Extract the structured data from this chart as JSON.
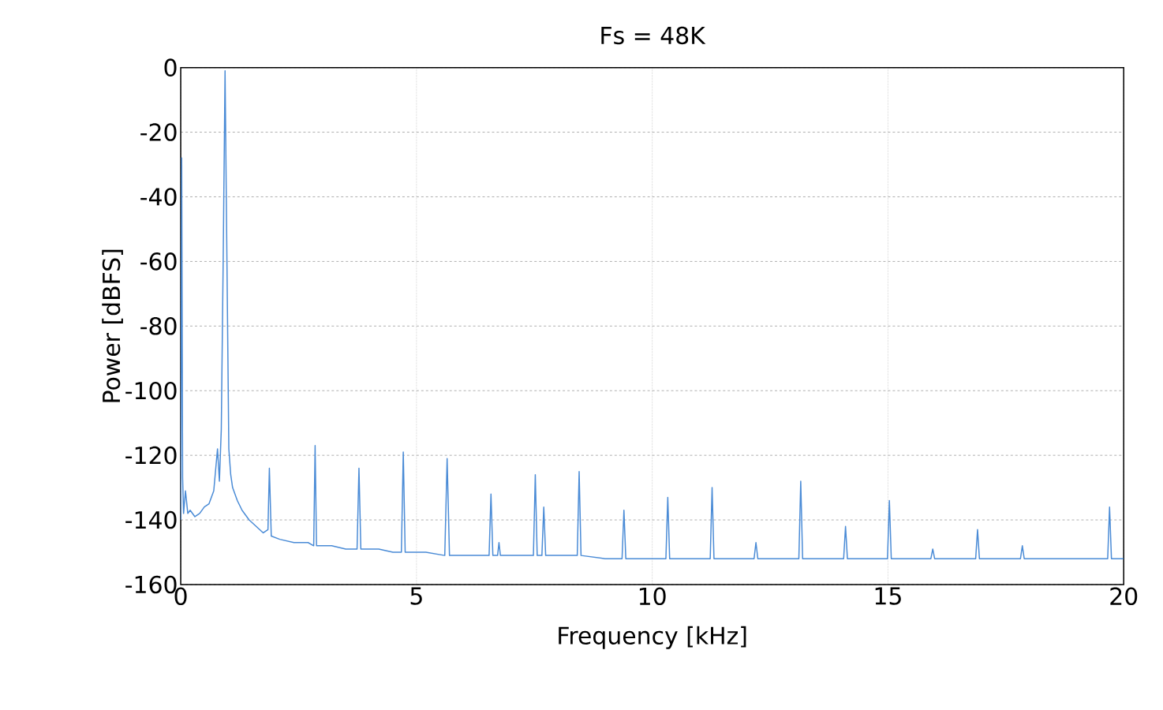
{
  "chart_data": {
    "type": "line",
    "title": "Fs = 48K",
    "xlabel": "Frequency [kHz]",
    "ylabel": "Power [dBFS]",
    "xlim": [
      0,
      20
    ],
    "ylim": [
      -160,
      0
    ],
    "xticks": [
      0,
      5,
      10,
      15,
      20
    ],
    "yticks": [
      0,
      -20,
      -40,
      -60,
      -80,
      -100,
      -120,
      -140,
      -160
    ],
    "grid": true,
    "series": [
      {
        "color": "#4a8bd6",
        "x": [
          0,
          0.02,
          0.04,
          0.06,
          0.1,
          0.15,
          0.2,
          0.3,
          0.4,
          0.5,
          0.6,
          0.7,
          0.78,
          0.82,
          0.86,
          0.9,
          0.94,
          0.98,
          1.02,
          1.06,
          1.1,
          1.2,
          1.3,
          1.45,
          1.6,
          1.75,
          1.85,
          1.88,
          1.92,
          2.1,
          2.4,
          2.7,
          2.82,
          2.85,
          2.88,
          3.2,
          3.5,
          3.74,
          3.78,
          3.82,
          4.2,
          4.5,
          4.68,
          4.72,
          4.76,
          5.2,
          5.6,
          5.65,
          5.7,
          6.2,
          6.54,
          6.58,
          6.62,
          6.72,
          6.75,
          6.78,
          7.2,
          7.48,
          7.52,
          7.56,
          7.66,
          7.7,
          7.74,
          8.1,
          8.41,
          8.45,
          8.49,
          9.0,
          9.36,
          9.4,
          9.44,
          9.9,
          10.29,
          10.33,
          10.37,
          10.8,
          11.23,
          11.27,
          11.31,
          11.8,
          12.16,
          12.2,
          12.24,
          12.7,
          13.11,
          13.15,
          13.19,
          13.6,
          14.06,
          14.1,
          14.14,
          14.6,
          14.99,
          15.03,
          15.07,
          15.5,
          15.91,
          15.95,
          15.99,
          16.4,
          16.86,
          16.9,
          16.94,
          17.4,
          17.81,
          17.85,
          17.89,
          18.5,
          19.2,
          19.66,
          19.7,
          19.74,
          20
        ],
        "values": [
          -140,
          -28,
          -127,
          -138,
          -131,
          -138,
          -137,
          -139,
          -138,
          -136,
          -135,
          -131,
          -118,
          -128,
          -112,
          -60,
          -1,
          -60,
          -118,
          -126,
          -130,
          -134,
          -137,
          -140,
          -142,
          -144,
          -143,
          -124,
          -145,
          -146,
          -147,
          -147,
          -148,
          -117,
          -148,
          -148,
          -149,
          -149,
          -124,
          -149,
          -149,
          -150,
          -150,
          -119,
          -150,
          -150,
          -151,
          -121,
          -151,
          -151,
          -151,
          -132,
          -151,
          -151,
          -147,
          -151,
          -151,
          -151,
          -126,
          -151,
          -151,
          -136,
          -151,
          -151,
          -151,
          -125,
          -151,
          -152,
          -152,
          -137,
          -152,
          -152,
          -152,
          -133,
          -152,
          -152,
          -152,
          -130,
          -152,
          -152,
          -152,
          -147,
          -152,
          -152,
          -152,
          -128,
          -152,
          -152,
          -152,
          -142,
          -152,
          -152,
          -152,
          -134,
          -152,
          -152,
          -152,
          -149,
          -152,
          -152,
          -152,
          -143,
          -152,
          -152,
          -152,
          -148,
          -152,
          -152,
          -152,
          -152,
          -136,
          -152,
          -152
        ]
      }
    ]
  }
}
